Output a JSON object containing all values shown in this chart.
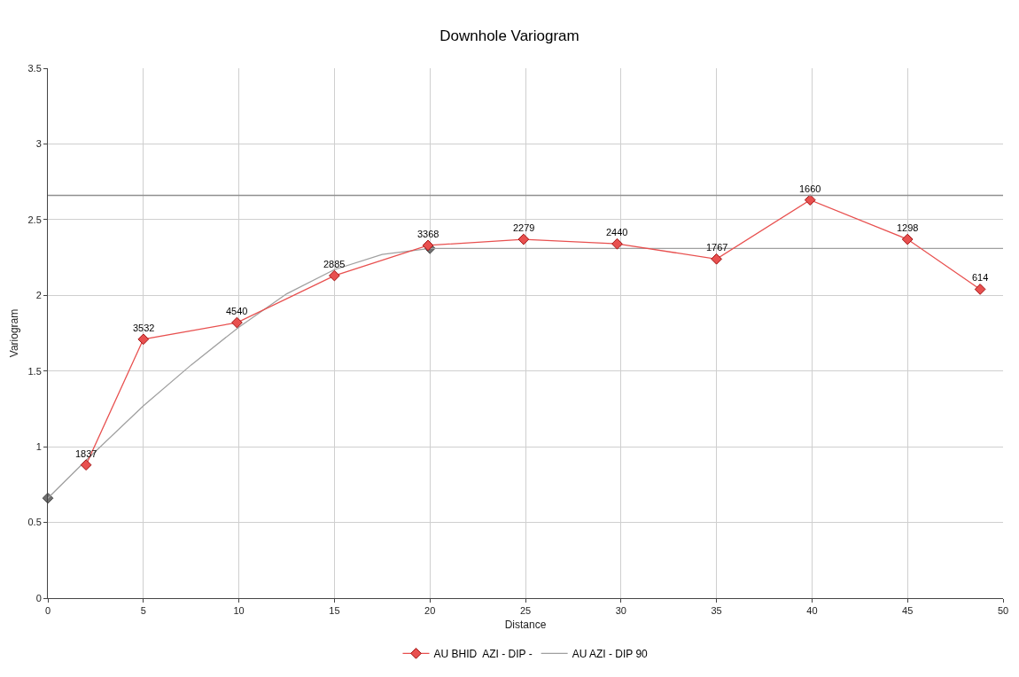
{
  "chart_data": {
    "type": "line",
    "title": "Downhole Variogram",
    "xlabel": "Distance",
    "ylabel": "Variogram",
    "xlim": [
      0,
      50
    ],
    "xticks": [
      0,
      5,
      10,
      15,
      20,
      25,
      30,
      35,
      40,
      45,
      50
    ],
    "ylim": [
      0,
      3.5
    ],
    "yticks": [
      0,
      0.5,
      1,
      1.5,
      2,
      2.5,
      3,
      3.5
    ],
    "grid": true,
    "legend": "bottom",
    "line_style": "solid",
    "series": [
      {
        "type": "scatter",
        "color": "#707070",
        "marker": "diamond",
        "x": [
          0,
          20
        ],
        "values": [
          0.66,
          2.31
        ]
      },
      {
        "name": "AU AZI - DIP 90",
        "color": "#a0a0a0",
        "marker": "none",
        "x": [
          0,
          2,
          5,
          7.5,
          10,
          12.5,
          15,
          17.5,
          20,
          50
        ],
        "values": [
          0.66,
          0.91,
          1.27,
          1.54,
          1.79,
          2.01,
          2.17,
          2.27,
          2.31,
          2.31
        ]
      },
      {
        "name": "AU BHID  AZI - DIP -",
        "color": "#e8504f",
        "marker": "diamond",
        "x": [
          2,
          5,
          9.9,
          15,
          19.9,
          24.9,
          29.8,
          35,
          39.9,
          45,
          48.8
        ],
        "values": [
          0.88,
          1.71,
          1.82,
          2.13,
          2.33,
          2.37,
          2.34,
          2.24,
          2.63,
          2.37,
          2.04
        ]
      }
    ],
    "annotations": [
      {
        "text": "1837",
        "x": 2,
        "y": 0.88
      },
      {
        "text": "3532",
        "x": 5,
        "y": 1.71
      },
      {
        "text": "4540",
        "x": 9.9,
        "y": 1.82
      },
      {
        "text": "2885",
        "x": 15,
        "y": 2.13
      },
      {
        "text": "3368",
        "x": 19.9,
        "y": 2.33
      },
      {
        "text": "2279",
        "x": 24.9,
        "y": 2.37
      },
      {
        "text": "2440",
        "x": 29.8,
        "y": 2.34
      },
      {
        "text": "1767",
        "x": 35,
        "y": 2.24
      },
      {
        "text": "1660",
        "x": 39.9,
        "y": 2.63
      },
      {
        "text": "1298",
        "x": 45,
        "y": 2.37
      },
      {
        "text": "614",
        "x": 48.8,
        "y": 2.04
      }
    ],
    "ref_lines": [
      {
        "axis": "y",
        "value": 2.66,
        "color": "#909090"
      }
    ]
  }
}
